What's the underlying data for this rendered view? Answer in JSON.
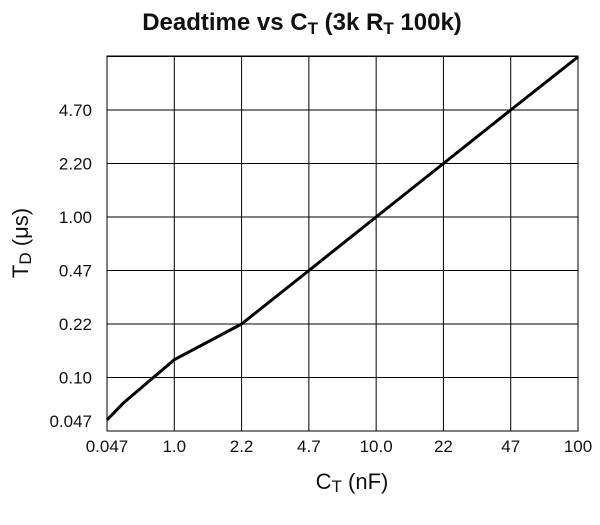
{
  "chart_data": {
    "type": "line",
    "title": {
      "prefix": "Deadtime vs C",
      "prefix_sub": "T",
      "middle": " (3k  R",
      "middle_sub": "T",
      "suffix": "  100k)"
    },
    "xlabel": {
      "main": "C",
      "sub": "T",
      "rest": " (nF)"
    },
    "ylabel": {
      "main": "T",
      "sub": "D",
      "rest": " (μs)"
    },
    "x_ticks": [
      "0.047",
      "1.0",
      "2.2",
      "4.7",
      "10.0",
      "22",
      "47",
      "100"
    ],
    "y_ticks": [
      "0.047",
      "0.10",
      "0.22",
      "0.47",
      "1.00",
      "2.20",
      "4.70"
    ],
    "y_extra_gridlines": 1,
    "grid": true,
    "series": [
      {
        "x": [
          "0.047",
          "0.1",
          "1.0",
          "2.2",
          "4.7",
          "10.0",
          "22",
          "47",
          "100"
        ],
        "y": [
          0.055,
          0.07,
          0.13,
          0.22,
          0.47,
          1.0,
          2.2,
          4.7,
          10.0
        ]
      }
    ]
  }
}
